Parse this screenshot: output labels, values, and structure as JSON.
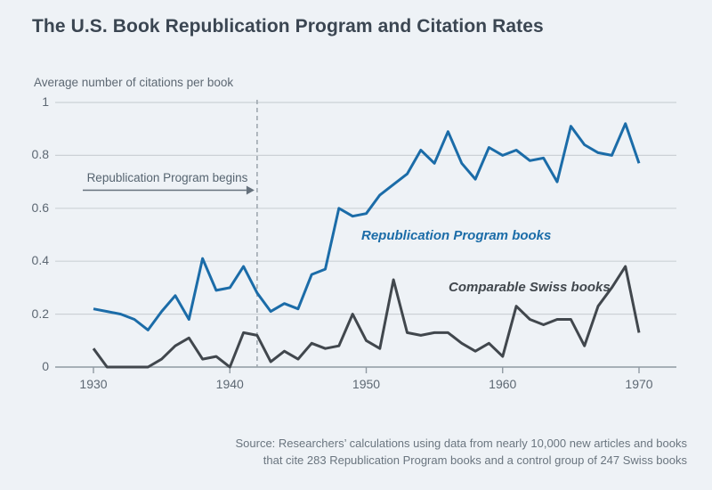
{
  "page": {
    "title": "The U.S. Book Republication Program and Citation Rates",
    "axis_caption": "Average number of citations per book",
    "source_line1": "Source: Researchers’ calculations using data from nearly 10,000 new articles and books",
    "source_line2": "that cite 283 Republication Program books and a control group of 247 Swiss books"
  },
  "colors": {
    "background": "#eef2f6",
    "title_text": "#3b4652",
    "muted_text": "#5d6873",
    "blue_line": "#1b6ca8",
    "gray_line": "#41474d",
    "gridline": "#ccd1d6",
    "axis_line": "#8f99a2",
    "dashed_line": "#99a3ab",
    "arrow": "#66717c",
    "source_text": "#6a757f"
  },
  "chart_data": {
    "type": "line",
    "title": "The U.S. Book Republication Program and Citation Rates",
    "ylabel": "Average number of citations per book",
    "xlabel": "",
    "grid": true,
    "legend_position": "inline-labels",
    "xlim": [
      1927.2,
      1972.7
    ],
    "ylim": [
      0,
      1
    ],
    "xticks": [
      1930,
      1940,
      1950,
      1960,
      1970
    ],
    "xtick_labels": [
      "1930",
      "1940",
      "1950",
      "1960",
      "1970"
    ],
    "yticks": [
      0,
      0.2,
      0.4,
      0.6,
      0.8,
      1
    ],
    "ytick_labels": [
      "0",
      "0.2",
      "0.4",
      "0.6",
      "0.8",
      "1"
    ],
    "x": [
      1930,
      1931,
      1932,
      1933,
      1934,
      1935,
      1936,
      1937,
      1938,
      1939,
      1940,
      1941,
      1942,
      1943,
      1944,
      1945,
      1946,
      1947,
      1948,
      1949,
      1950,
      1951,
      1952,
      1953,
      1954,
      1955,
      1956,
      1957,
      1958,
      1959,
      1960,
      1961,
      1962,
      1963,
      1964,
      1965,
      1966,
      1967,
      1968,
      1969,
      1970
    ],
    "series": [
      {
        "name": "Republication Program books",
        "color": "#1b6ca8",
        "values": [
          0.22,
          0.21,
          0.2,
          0.18,
          0.14,
          0.21,
          0.27,
          0.18,
          0.41,
          0.29,
          0.3,
          0.38,
          0.28,
          0.21,
          0.24,
          0.22,
          0.35,
          0.37,
          0.6,
          0.57,
          0.58,
          0.65,
          0.69,
          0.73,
          0.82,
          0.77,
          0.89,
          0.77,
          0.71,
          0.83,
          0.8,
          0.82,
          0.78,
          0.79,
          0.7,
          0.91,
          0.84,
          0.81,
          0.8,
          0.92,
          0.77
        ]
      },
      {
        "name": "Comparable Swiss books",
        "color": "#41474d",
        "values": [
          0.07,
          0.0,
          0.0,
          0.0,
          0.0,
          0.03,
          0.08,
          0.11,
          0.03,
          0.04,
          0.0,
          0.13,
          0.12,
          0.02,
          0.06,
          0.03,
          0.09,
          0.07,
          0.08,
          0.2,
          0.1,
          0.07,
          0.33,
          0.13,
          0.12,
          0.13,
          0.13,
          0.09,
          0.06,
          0.09,
          0.04,
          0.23,
          0.18,
          0.16,
          0.18,
          0.18,
          0.08,
          0.23,
          0.3,
          0.38,
          0.13
        ]
      }
    ],
    "annotations": {
      "arrow_label": "Republication Program begins",
      "vline_year": 1942,
      "vline_style": "dashed"
    }
  }
}
